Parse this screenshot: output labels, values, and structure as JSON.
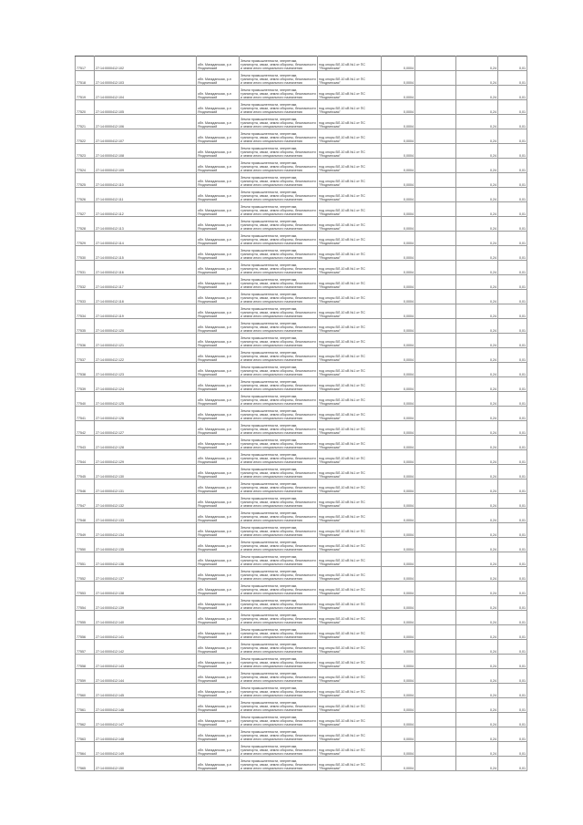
{
  "common": {
    "address": "обл. Магаданская, р-н Ягоднинский",
    "category": "Земли промышленности, энергетики, транспорта, связи, земли обороны, безопасности и земли иного специального назначения",
    "purpose": "под опоры ВЛ-10 кВ №1 от ПС \"Ягоднинская\"",
    "area": "0,0004",
    "value": "0,24",
    "last": "0,01"
  },
  "rows": [
    {
      "id": "77517",
      "cad": "27:14:0000412:102"
    },
    {
      "id": "77518",
      "cad": "27:14:0000412:103"
    },
    {
      "id": "77519",
      "cad": "27:14:0000412:104"
    },
    {
      "id": "77520",
      "cad": "27:14:0000412:105"
    },
    {
      "id": "77521",
      "cad": "27:14:0000412:106"
    },
    {
      "id": "77522",
      "cad": "27:14:0000412:107"
    },
    {
      "id": "77523",
      "cad": "27:14:0000412:108"
    },
    {
      "id": "77524",
      "cad": "27:14:0000412:109"
    },
    {
      "id": "77525",
      "cad": "27:14:0000412:110"
    },
    {
      "id": "77526",
      "cad": "27:14:0000412:111"
    },
    {
      "id": "77527",
      "cad": "27:14:0000412:112"
    },
    {
      "id": "77528",
      "cad": "27:14:0000412:113"
    },
    {
      "id": "77529",
      "cad": "27:14:0000412:114"
    },
    {
      "id": "77530",
      "cad": "27:14:0000412:115"
    },
    {
      "id": "77531",
      "cad": "27:14:0000412:116"
    },
    {
      "id": "77532",
      "cad": "27:14:0000412:117"
    },
    {
      "id": "77533",
      "cad": "27:14:0000412:118"
    },
    {
      "id": "77534",
      "cad": "27:14:0000412:119"
    },
    {
      "id": "77535",
      "cad": "27:14:0000412:120"
    },
    {
      "id": "77536",
      "cad": "27:14:0000412:121"
    },
    {
      "id": "77537",
      "cad": "27:14:0000412:122"
    },
    {
      "id": "77538",
      "cad": "27:14:0000412:123"
    },
    {
      "id": "77539",
      "cad": "27:14:0000412:124"
    },
    {
      "id": "77540",
      "cad": "27:14:0000412:125"
    },
    {
      "id": "77541",
      "cad": "27:14:0000412:126"
    },
    {
      "id": "77542",
      "cad": "27:14:0000412:127"
    },
    {
      "id": "77543",
      "cad": "27:14:0000412:128"
    },
    {
      "id": "77544",
      "cad": "27:14:0000412:129"
    },
    {
      "id": "77545",
      "cad": "27:14:0000412:130"
    },
    {
      "id": "77546",
      "cad": "27:14:0000412:131"
    },
    {
      "id": "77547",
      "cad": "27:14:0000412:132"
    },
    {
      "id": "77548",
      "cad": "27:14:0000412:133"
    },
    {
      "id": "77549",
      "cad": "27:14:0000412:134"
    },
    {
      "id": "77550",
      "cad": "27:14:0000412:135"
    },
    {
      "id": "77551",
      "cad": "27:14:0000412:136"
    },
    {
      "id": "77552",
      "cad": "27:14:0000412:137"
    },
    {
      "id": "77553",
      "cad": "27:14:0000412:138"
    },
    {
      "id": "77554",
      "cad": "27:14:0000412:139"
    },
    {
      "id": "77555",
      "cad": "27:14:0000412:140"
    },
    {
      "id": "77556",
      "cad": "27:14:0000412:141"
    },
    {
      "id": "77557",
      "cad": "27:14:0000412:142"
    },
    {
      "id": "77558",
      "cad": "27:14:0000412:143"
    },
    {
      "id": "77559",
      "cad": "27:14:0000412:144"
    },
    {
      "id": "77560",
      "cad": "27:14:0000412:145"
    },
    {
      "id": "77561",
      "cad": "27:14:0000412:146"
    },
    {
      "id": "77562",
      "cad": "27:14:0000412:147"
    },
    {
      "id": "77563",
      "cad": "27:14:0000412:148"
    },
    {
      "id": "77564",
      "cad": "27:14:0000412:149"
    },
    {
      "id": "77565",
      "cad": "27:14:0000412:150"
    }
  ]
}
